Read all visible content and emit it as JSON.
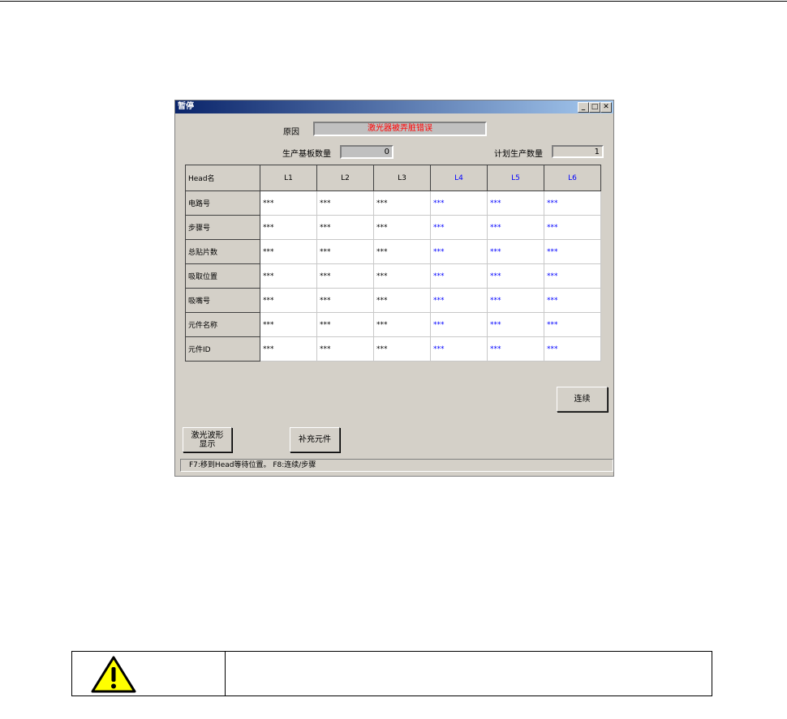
{
  "dialog": {
    "title": "暂停",
    "reason_label": "原因",
    "reason_value": "激光器被弄脏错误",
    "board_count_label": "生产基板数量",
    "board_count_value": "0",
    "planned_count_label": "计划生产数量",
    "planned_count_value": "1",
    "table": {
      "headers": [
        "Head名",
        "L1",
        "L2",
        "L3",
        "L4",
        "L5",
        "L6"
      ],
      "rows": [
        {
          "label": "电路号",
          "cells": [
            "***",
            "***",
            "***",
            "***",
            "***",
            "***"
          ]
        },
        {
          "label": "步骤号",
          "cells": [
            "***",
            "***",
            "***",
            "***",
            "***",
            "***"
          ]
        },
        {
          "label": "总贴片数",
          "cells": [
            "***",
            "***",
            "***",
            "***",
            "***",
            "***"
          ]
        },
        {
          "label": "吸取位置",
          "cells": [
            "***",
            "***",
            "***",
            "***",
            "***",
            "***"
          ]
        },
        {
          "label": "吸嘴号",
          "cells": [
            "***",
            "***",
            "***",
            "***",
            "***",
            "***"
          ]
        },
        {
          "label": "元件名称",
          "cells": [
            "***",
            "***",
            "***",
            "***",
            "***",
            "***"
          ]
        },
        {
          "label": "元件ID",
          "cells": [
            "***",
            "***",
            "***",
            "***",
            "***",
            "***"
          ]
        }
      ]
    },
    "continue_button": "连续",
    "laser_waveform_button": "激光波形\n显示",
    "replenish_button": "补充元件",
    "status_text": "F7:移到Head等待位置。   F8:连续/步骤",
    "colors": {
      "reason_text": "#ff0000",
      "head_highlight": "#0000ff"
    }
  },
  "warning": {
    "icon": "warning-triangle-icon"
  }
}
